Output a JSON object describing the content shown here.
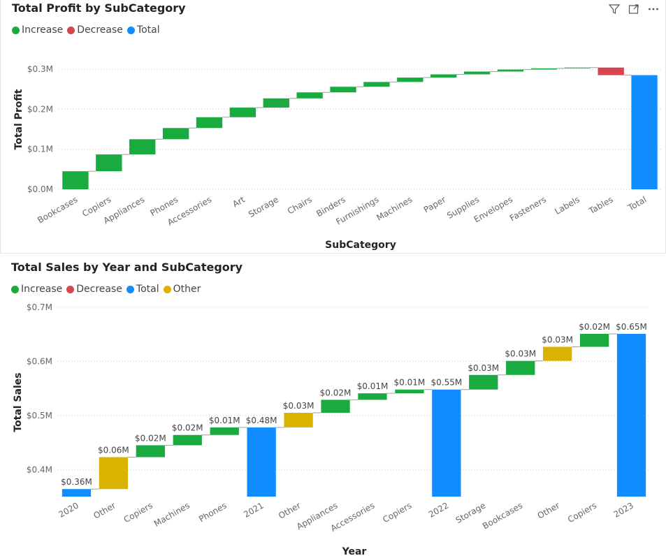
{
  "colors": {
    "increase": "#1aab40",
    "decrease": "#d64550",
    "total": "#118dff",
    "other": "#d9b300",
    "grid": "#c8c8c8",
    "connector": "#9e9e9e"
  },
  "charts": [
    {
      "title": "Total Profit by SubCategory",
      "legend": [
        {
          "label": "Increase",
          "color": "#1aab40"
        },
        {
          "label": "Decrease",
          "color": "#d64550"
        },
        {
          "label": "Total",
          "color": "#118dff"
        }
      ],
      "icons": [
        "filter-icon",
        "focus-mode-icon",
        "more-options-icon"
      ]
    },
    {
      "title": "Total Sales by Year and SubCategory",
      "legend": [
        {
          "label": "Increase",
          "color": "#1aab40"
        },
        {
          "label": "Decrease",
          "color": "#d64550"
        },
        {
          "label": "Total",
          "color": "#118dff"
        },
        {
          "label": "Other",
          "color": "#d9b300"
        }
      ]
    }
  ],
  "chart_data": [
    {
      "type": "bar",
      "subtype": "waterfall",
      "title": "Total Profit by SubCategory",
      "xlabel": "SubCategory",
      "ylabel": "Total Profit",
      "ylim": [
        0,
        0.3
      ],
      "yticks": [
        "$0.0M",
        "$0.1M",
        "$0.2M",
        "$0.3M"
      ],
      "ytick_values": [
        0,
        0.1,
        0.2,
        0.3
      ],
      "grid": true,
      "legend_position": "top-left",
      "categories": [
        "Bookcases",
        "Copiers",
        "Appliances",
        "Phones",
        "Accessories",
        "Art",
        "Storage",
        "Chairs",
        "Binders",
        "Furnishings",
        "Machines",
        "Paper",
        "Supplies",
        "Envelopes",
        "Fasteners",
        "Labels",
        "Tables",
        "Total"
      ],
      "steps": [
        {
          "start": 0,
          "end": 0.045,
          "kind": "increase"
        },
        {
          "start": 0.045,
          "end": 0.087,
          "kind": "increase"
        },
        {
          "start": 0.087,
          "end": 0.125,
          "kind": "increase"
        },
        {
          "start": 0.125,
          "end": 0.153,
          "kind": "increase"
        },
        {
          "start": 0.153,
          "end": 0.18,
          "kind": "increase"
        },
        {
          "start": 0.18,
          "end": 0.204,
          "kind": "increase"
        },
        {
          "start": 0.204,
          "end": 0.227,
          "kind": "increase"
        },
        {
          "start": 0.227,
          "end": 0.242,
          "kind": "increase"
        },
        {
          "start": 0.242,
          "end": 0.256,
          "kind": "increase"
        },
        {
          "start": 0.256,
          "end": 0.268,
          "kind": "increase"
        },
        {
          "start": 0.268,
          "end": 0.279,
          "kind": "increase"
        },
        {
          "start": 0.279,
          "end": 0.287,
          "kind": "increase"
        },
        {
          "start": 0.287,
          "end": 0.294,
          "kind": "increase"
        },
        {
          "start": 0.294,
          "end": 0.299,
          "kind": "increase"
        },
        {
          "start": 0.299,
          "end": 0.302,
          "kind": "increase"
        },
        {
          "start": 0.302,
          "end": 0.304,
          "kind": "increase"
        },
        {
          "start": 0.304,
          "end": 0.285,
          "kind": "decrease"
        },
        {
          "start": 0,
          "end": 0.285,
          "kind": "total"
        }
      ]
    },
    {
      "type": "bar",
      "subtype": "waterfall",
      "title": "Total Sales by Year and SubCategory",
      "xlabel": "Year",
      "ylabel": "Total Sales",
      "ylim": [
        0.35,
        0.7
      ],
      "yticks": [
        "$0.4M",
        "$0.5M",
        "$0.6M",
        "$0.7M"
      ],
      "ytick_values": [
        0.4,
        0.5,
        0.6,
        0.7
      ],
      "grid": true,
      "legend_position": "top-left",
      "categories": [
        "2020",
        "Other",
        "Copiers",
        "Machines",
        "Phones",
        "2021",
        "Other",
        "Appliances",
        "Accessories",
        "Copiers",
        "2022",
        "Storage",
        "Bookcases",
        "Other",
        "Copiers",
        "2023"
      ],
      "steps": [
        {
          "start": 0.35,
          "end": 0.364,
          "kind": "total",
          "label": "$0.36M"
        },
        {
          "start": 0.364,
          "end": 0.423,
          "kind": "other",
          "label": "$0.06M"
        },
        {
          "start": 0.423,
          "end": 0.445,
          "kind": "increase",
          "label": "$0.02M"
        },
        {
          "start": 0.445,
          "end": 0.464,
          "kind": "increase",
          "label": "$0.02M"
        },
        {
          "start": 0.464,
          "end": 0.478,
          "kind": "increase",
          "label": "$0.01M"
        },
        {
          "start": 0.35,
          "end": 0.478,
          "kind": "total",
          "label": "$0.48M"
        },
        {
          "start": 0.478,
          "end": 0.505,
          "kind": "other",
          "label": "$0.03M"
        },
        {
          "start": 0.505,
          "end": 0.529,
          "kind": "increase",
          "label": "$0.02M"
        },
        {
          "start": 0.529,
          "end": 0.541,
          "kind": "increase",
          "label": "$0.01M"
        },
        {
          "start": 0.541,
          "end": 0.548,
          "kind": "increase",
          "label": "$0.01M"
        },
        {
          "start": 0.35,
          "end": 0.548,
          "kind": "total",
          "label": "$0.55M"
        },
        {
          "start": 0.548,
          "end": 0.575,
          "kind": "increase",
          "label": "$0.03M"
        },
        {
          "start": 0.575,
          "end": 0.601,
          "kind": "increase",
          "label": "$0.03M"
        },
        {
          "start": 0.601,
          "end": 0.627,
          "kind": "other",
          "label": "$0.03M"
        },
        {
          "start": 0.627,
          "end": 0.651,
          "kind": "increase",
          "label": "$0.02M"
        },
        {
          "start": 0.35,
          "end": 0.651,
          "kind": "total",
          "label": "$0.65M"
        }
      ]
    }
  ]
}
